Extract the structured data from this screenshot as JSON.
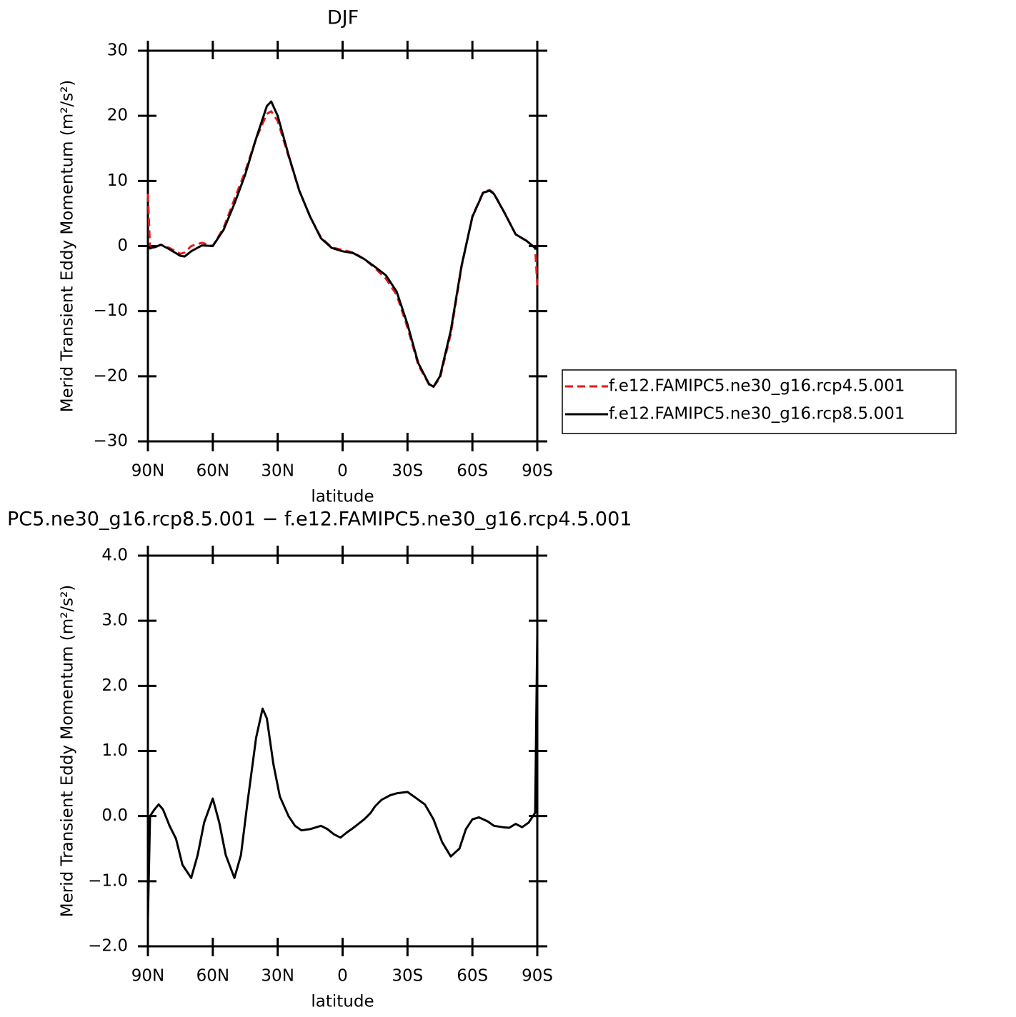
{
  "chart_data": [
    {
      "type": "line",
      "title": "DJF",
      "xlabel": "latitude",
      "ylabel": "Merid Transient Eddy Momentum (m²/s²)",
      "x": [
        90,
        89,
        87,
        84,
        80,
        75,
        73,
        70,
        65,
        60,
        55,
        50,
        45,
        40,
        35,
        33,
        30,
        25,
        20,
        15,
        10,
        5,
        0,
        -5,
        -10,
        -15,
        -20,
        -25,
        -30,
        -35,
        -40,
        -42,
        -45,
        -50,
        -55,
        -60,
        -65,
        -68,
        -70,
        -75,
        -80,
        -85,
        -89,
        -90
      ],
      "xlim": [
        90,
        -90
      ],
      "xticks": [
        {
          "value": 90,
          "label": "90N"
        },
        {
          "value": 60,
          "label": "60N"
        },
        {
          "value": 30,
          "label": "30N"
        },
        0,
        {
          "value": -30,
          "label": "30S"
        },
        {
          "value": -60,
          "label": "60S"
        },
        {
          "value": -90,
          "label": "90S"
        }
      ],
      "ylim": [
        -30,
        30
      ],
      "yticks": [
        {
          "value": -30,
          "label": "−30"
        },
        {
          "value": -20,
          "label": "−20"
        },
        {
          "value": -10,
          "label": "−10"
        },
        0,
        10,
        20,
        30
      ],
      "series": [
        {
          "name": "f.e12.FAMIPC5.ne30_g16.rcp4.5.001",
          "color": "#e41a1c",
          "dash": true,
          "values": [
            8,
            -0.4,
            -0.2,
            0.2,
            -0.3,
            -1.2,
            -1.0,
            0.0,
            0.5,
            0.0,
            2.8,
            7.2,
            11.5,
            16.5,
            20.3,
            20.7,
            19.2,
            13.8,
            8.5,
            4.5,
            1.3,
            -0.2,
            -0.6,
            -1.0,
            -2.0,
            -3.4,
            -5.0,
            -7.5,
            -12.5,
            -18.3,
            -21.3,
            -21.6,
            -20.3,
            -13.5,
            -3.2,
            4.6,
            8.3,
            8.6,
            8.1,
            5.0,
            1.8,
            0.8,
            -0.3,
            -6
          ]
        },
        {
          "name": "f.e12.FAMIPC5.ne30_g16.rcp8.5.001",
          "color": "#000000",
          "dash": false,
          "values": [
            0,
            -0.3,
            -0.2,
            0.2,
            -0.5,
            -1.5,
            -1.6,
            -0.8,
            0.1,
            0.0,
            2.5,
            6.5,
            11.0,
            16.5,
            21.5,
            22.2,
            20.0,
            14.0,
            8.5,
            4.5,
            1.2,
            -0.3,
            -0.8,
            -1.1,
            -2.0,
            -3.2,
            -4.5,
            -7.0,
            -12.0,
            -18.0,
            -21.2,
            -21.6,
            -20.0,
            -13.0,
            -3.0,
            4.5,
            8.2,
            8.5,
            8.0,
            5.0,
            1.8,
            0.8,
            -0.3,
            -0.5
          ]
        }
      ]
    },
    {
      "type": "line",
      "title": "PC5.ne30_g16.rcp8.5.001 − f.e12.FAMIPC5.ne30_g16.rcp4.5.001",
      "xlabel": "latitude",
      "ylabel": "Merid Transient Eddy Momentum (m²/s²)",
      "x": [
        90,
        89,
        87,
        85,
        83,
        80,
        77,
        74,
        70,
        67,
        64,
        60,
        57,
        54,
        50,
        47,
        44,
        40,
        37,
        35,
        32,
        29,
        25,
        22,
        19,
        15,
        10,
        7,
        4,
        1,
        -2,
        -5,
        -10,
        -13,
        -15,
        -18,
        -22,
        -25,
        -30,
        -33,
        -38,
        -42,
        -46,
        -50,
        -54,
        -57,
        -60,
        -63,
        -67,
        -70,
        -74,
        -77,
        -80,
        -83,
        -86,
        -89,
        -90
      ],
      "xlim": [
        90,
        -90
      ],
      "xticks": [
        {
          "value": 90,
          "label": "90N"
        },
        {
          "value": 60,
          "label": "60N"
        },
        {
          "value": 30,
          "label": "30N"
        },
        0,
        {
          "value": -30,
          "label": "30S"
        },
        {
          "value": -60,
          "label": "60S"
        },
        {
          "value": -90,
          "label": "90S"
        }
      ],
      "ylim": [
        -2,
        4
      ],
      "yticks": [
        {
          "value": -2,
          "label": "−2.0"
        },
        {
          "value": -1,
          "label": "−1.0"
        },
        {
          "value": 0,
          "label": "0.0"
        },
        {
          "value": 1,
          "label": "1.0"
        },
        {
          "value": 2,
          "label": "2.0"
        },
        {
          "value": 3,
          "label": "3.0"
        },
        {
          "value": 4,
          "label": "4.0"
        }
      ],
      "series": [
        {
          "name": null,
          "color": "#000000",
          "dash": false,
          "values": [
            -1.6,
            0.0,
            0.1,
            0.18,
            0.1,
            -0.15,
            -0.35,
            -0.75,
            -0.95,
            -0.6,
            -0.1,
            0.27,
            -0.1,
            -0.6,
            -0.95,
            -0.6,
            0.2,
            1.2,
            1.65,
            1.5,
            0.8,
            0.3,
            0.0,
            -0.15,
            -0.22,
            -0.2,
            -0.15,
            -0.2,
            -0.28,
            -0.33,
            -0.25,
            -0.18,
            -0.05,
            0.05,
            0.15,
            0.25,
            0.32,
            0.35,
            0.37,
            0.3,
            0.18,
            -0.05,
            -0.4,
            -0.62,
            -0.5,
            -0.2,
            -0.05,
            -0.02,
            -0.08,
            -0.15,
            -0.17,
            -0.18,
            -0.12,
            -0.17,
            -0.1,
            0.05,
            2.8
          ]
        }
      ]
    }
  ]
}
